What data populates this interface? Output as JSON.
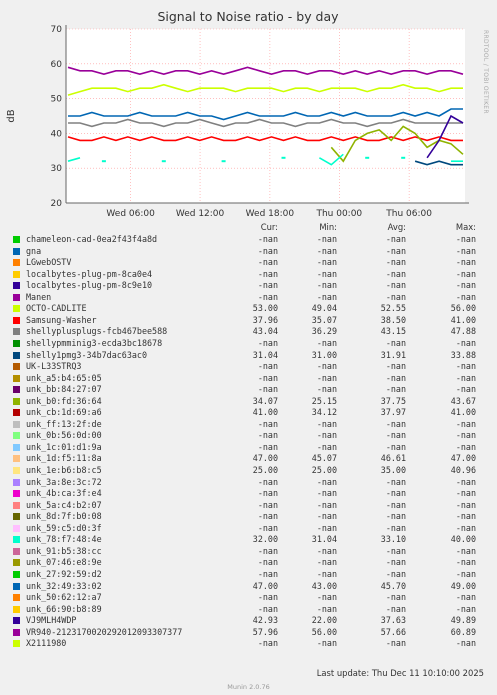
{
  "chart_data": {
    "type": "line",
    "title": "Signal to Noise ratio - by day",
    "ylabel": "dB",
    "ylim": [
      20,
      70
    ],
    "yticks": [
      20,
      30,
      40,
      50,
      60,
      70
    ],
    "x_range": [
      "Wed 00:40",
      "Thu 10:10"
    ],
    "xticks": [
      "Wed 06:00",
      "Wed 12:00",
      "Wed 18:00",
      "Thu 00:00",
      "Thu 06:00"
    ],
    "grid": true,
    "series": [
      {
        "name": "VR940-2123170020292012093307377",
        "color": "#990099",
        "values": [
          59,
          58,
          58,
          57,
          58,
          58,
          57,
          58,
          57,
          58,
          58,
          57,
          58,
          57,
          58,
          59,
          58,
          57,
          58,
          58,
          57,
          58,
          58,
          57,
          58,
          57,
          58,
          57,
          58,
          58,
          57,
          58,
          58,
          57
        ]
      },
      {
        "name": "OCTO-CADLITE",
        "color": "#ccff00",
        "values": [
          51,
          52,
          53,
          53,
          53,
          52,
          53,
          53,
          54,
          53,
          52,
          53,
          53,
          53,
          52,
          53,
          53,
          53,
          52,
          53,
          53,
          52,
          53,
          53,
          53,
          52,
          53,
          53,
          54,
          53,
          53,
          52,
          53,
          53
        ]
      },
      {
        "name": "unk_32:49:33:02",
        "color": "#0066b3",
        "values": [
          45,
          45,
          46,
          45,
          45,
          45,
          46,
          45,
          45,
          45,
          46,
          45,
          45,
          44,
          45,
          46,
          45,
          45,
          45,
          46,
          45,
          45,
          46,
          45,
          46,
          45,
          45,
          45,
          46,
          45,
          46,
          45,
          47,
          47
        ]
      },
      {
        "name": "shellyplusplugs-fcb467bee588",
        "color": "#808080",
        "values": [
          43,
          43,
          42,
          43,
          43,
          44,
          43,
          43,
          42,
          43,
          43,
          44,
          43,
          42,
          43,
          43,
          44,
          43,
          43,
          42,
          43,
          43,
          44,
          43,
          43,
          42,
          43,
          43,
          44,
          43,
          43,
          43,
          43,
          43
        ]
      },
      {
        "name": "Samsung-Washer",
        "color": "#ff0000",
        "values": [
          39,
          38,
          38,
          39,
          38,
          39,
          38,
          39,
          38,
          38,
          39,
          38,
          39,
          38,
          38,
          39,
          38,
          39,
          38,
          39,
          38,
          38,
          39,
          38,
          39,
          38,
          38,
          39,
          38,
          39,
          38,
          39,
          38,
          38
        ]
      },
      {
        "name": "unk_b0:fd:36:64",
        "color": "#8fb300",
        "values": [
          null,
          null,
          null,
          null,
          null,
          null,
          null,
          null,
          null,
          null,
          null,
          null,
          null,
          null,
          null,
          null,
          null,
          null,
          null,
          null,
          null,
          null,
          36,
          32,
          38,
          40,
          41,
          38,
          42,
          40,
          36,
          38,
          37,
          34
        ]
      },
      {
        "name": "unk_78:f7:48:4e",
        "color": "#00ffcc",
        "values": [
          32,
          33,
          null,
          32,
          null,
          null,
          null,
          null,
          32,
          null,
          null,
          null,
          null,
          32,
          null,
          null,
          null,
          null,
          33,
          null,
          null,
          33,
          31,
          34,
          null,
          33,
          null,
          null,
          33,
          null,
          null,
          null,
          32,
          32
        ]
      },
      {
        "name": "shelly1pmg3-34b7dac63ac0",
        "color": "#00487d",
        "values": [
          null,
          null,
          null,
          null,
          null,
          null,
          null,
          null,
          null,
          null,
          null,
          null,
          null,
          null,
          null,
          null,
          null,
          null,
          null,
          null,
          null,
          null,
          null,
          null,
          null,
          null,
          null,
          null,
          null,
          32,
          31,
          32,
          31,
          31
        ]
      },
      {
        "name": "VJ9MLH4WDP",
        "color": "#330099",
        "values": [
          null,
          null,
          null,
          null,
          null,
          null,
          null,
          null,
          null,
          null,
          null,
          null,
          null,
          null,
          null,
          null,
          null,
          null,
          null,
          null,
          null,
          null,
          null,
          null,
          null,
          null,
          null,
          null,
          null,
          null,
          33,
          38,
          45,
          43
        ]
      }
    ]
  },
  "legend": {
    "headers": {
      "cur": "Cur:",
      "min": "Min:",
      "avg": "Avg:",
      "max": "Max:"
    },
    "rows": [
      {
        "name": "chameleon-cad-0ea2f43f4a8d",
        "color": "#00cc00",
        "cur": "-nan",
        "min": "-nan",
        "avg": "-nan",
        "max": "-nan"
      },
      {
        "name": "gna",
        "color": "#0066b3",
        "cur": "-nan",
        "min": "-nan",
        "avg": "-nan",
        "max": "-nan"
      },
      {
        "name": "LGwebOSTV",
        "color": "#ff8000",
        "cur": "-nan",
        "min": "-nan",
        "avg": "-nan",
        "max": "-nan"
      },
      {
        "name": "localbytes-plug-pm-8ca0e4",
        "color": "#ffcc00",
        "cur": "-nan",
        "min": "-nan",
        "avg": "-nan",
        "max": "-nan"
      },
      {
        "name": "localbytes-plug-pm-8c9e10",
        "color": "#330099",
        "cur": "-nan",
        "min": "-nan",
        "avg": "-nan",
        "max": "-nan"
      },
      {
        "name": "Manen",
        "color": "#990099",
        "cur": "-nan",
        "min": "-nan",
        "avg": "-nan",
        "max": "-nan"
      },
      {
        "name": "OCTO-CADLITE",
        "color": "#ccff00",
        "cur": "53.00",
        "min": "49.04",
        "avg": "52.55",
        "max": "56.00"
      },
      {
        "name": "Samsung-Washer",
        "color": "#ff0000",
        "cur": "37.96",
        "min": "35.07",
        "avg": "38.50",
        "max": "41.00"
      },
      {
        "name": "shellyplusplugs-fcb467bee588",
        "color": "#808080",
        "cur": "43.04",
        "min": "36.29",
        "avg": "43.15",
        "max": "47.88"
      },
      {
        "name": "shellypmminig3-ecda3bc18678",
        "color": "#008f00",
        "cur": "-nan",
        "min": "-nan",
        "avg": "-nan",
        "max": "-nan"
      },
      {
        "name": "shelly1pmg3-34b7dac63ac0",
        "color": "#00487d",
        "cur": "31.04",
        "min": "31.00",
        "avg": "31.91",
        "max": "33.88"
      },
      {
        "name": "UK-L33STRQ3",
        "color": "#b35a00",
        "cur": "-nan",
        "min": "-nan",
        "avg": "-nan",
        "max": "-nan"
      },
      {
        "name": "unk_a5:b4:65:05",
        "color": "#b38f00",
        "cur": "-nan",
        "min": "-nan",
        "avg": "-nan",
        "max": "-nan"
      },
      {
        "name": "unk_bb:84:27:07",
        "color": "#6b006b",
        "cur": "-nan",
        "min": "-nan",
        "avg": "-nan",
        "max": "-nan"
      },
      {
        "name": "unk_b0:fd:36:64",
        "color": "#8fb300",
        "cur": "34.07",
        "min": "25.15",
        "avg": "37.75",
        "max": "43.67"
      },
      {
        "name": "unk_cb:1d:69:a6",
        "color": "#b30000",
        "cur": "41.00",
        "min": "34.12",
        "avg": "37.97",
        "max": "41.00"
      },
      {
        "name": "unk_ff:13:2f:de",
        "color": "#bebebe",
        "cur": "-nan",
        "min": "-nan",
        "avg": "-nan",
        "max": "-nan"
      },
      {
        "name": "unk_0b:56:0d:00",
        "color": "#80ff80",
        "cur": "-nan",
        "min": "-nan",
        "avg": "-nan",
        "max": "-nan"
      },
      {
        "name": "unk_1c:01:d1:9a",
        "color": "#80c9ff",
        "cur": "-nan",
        "min": "-nan",
        "avg": "-nan",
        "max": "-nan"
      },
      {
        "name": "unk_1d:f5:11:8a",
        "color": "#ffc080",
        "cur": "47.00",
        "min": "45.07",
        "avg": "46.61",
        "max": "47.00"
      },
      {
        "name": "unk_1e:b6:b8:c5",
        "color": "#ffe680",
        "cur": "25.00",
        "min": "25.00",
        "avg": "35.00",
        "max": "40.96"
      },
      {
        "name": "unk_3a:8e:3c:72",
        "color": "#aa80ff",
        "cur": "-nan",
        "min": "-nan",
        "avg": "-nan",
        "max": "-nan"
      },
      {
        "name": "unk_4b:ca:3f:e4",
        "color": "#ee00cc",
        "cur": "-nan",
        "min": "-nan",
        "avg": "-nan",
        "max": "-nan"
      },
      {
        "name": "unk_5a:c4:b2:07",
        "color": "#ff8080",
        "cur": "-nan",
        "min": "-nan",
        "avg": "-nan",
        "max": "-nan"
      },
      {
        "name": "unk_8d:7f:b0:08",
        "color": "#666600",
        "cur": "-nan",
        "min": "-nan",
        "avg": "-nan",
        "max": "-nan"
      },
      {
        "name": "unk_59:c5:d0:3f",
        "color": "#ffbfff",
        "cur": "-nan",
        "min": "-nan",
        "avg": "-nan",
        "max": "-nan"
      },
      {
        "name": "unk_78:f7:48:4e",
        "color": "#00ffcc",
        "cur": "32.00",
        "min": "31.04",
        "avg": "33.10",
        "max": "40.00"
      },
      {
        "name": "unk_91:b5:38:cc",
        "color": "#cc6699",
        "cur": "-nan",
        "min": "-nan",
        "avg": "-nan",
        "max": "-nan"
      },
      {
        "name": "unk_07:46:e8:9e",
        "color": "#999900",
        "cur": "-nan",
        "min": "-nan",
        "avg": "-nan",
        "max": "-nan"
      },
      {
        "name": "unk_27:92:59:d2",
        "color": "#00cc00",
        "cur": "-nan",
        "min": "-nan",
        "avg": "-nan",
        "max": "-nan"
      },
      {
        "name": "unk_32:49:33:02",
        "color": "#0066b3",
        "cur": "47.00",
        "min": "43.00",
        "avg": "45.70",
        "max": "49.00"
      },
      {
        "name": "unk_50:62:12:a7",
        "color": "#ff8000",
        "cur": "-nan",
        "min": "-nan",
        "avg": "-nan",
        "max": "-nan"
      },
      {
        "name": "unk_66:90:b8:89",
        "color": "#ffcc00",
        "cur": "-nan",
        "min": "-nan",
        "avg": "-nan",
        "max": "-nan"
      },
      {
        "name": "VJ9MLH4WDP",
        "color": "#330099",
        "cur": "42.93",
        "min": "22.00",
        "avg": "37.63",
        "max": "49.89"
      },
      {
        "name": "VR940-2123170020292012093307377",
        "color": "#990099",
        "cur": "57.96",
        "min": "56.00",
        "avg": "57.66",
        "max": "60.89"
      },
      {
        "name": "X2111980",
        "color": "#ccff00",
        "cur": "-nan",
        "min": "-nan",
        "avg": "-nan",
        "max": "-nan"
      }
    ]
  },
  "footer": {
    "last_update": "Last update: Thu Dec 11 10:10:00 2025",
    "munin_version": "Munin 2.0.76",
    "side_text": "RRDTOOL / TOBI OETIKER"
  }
}
